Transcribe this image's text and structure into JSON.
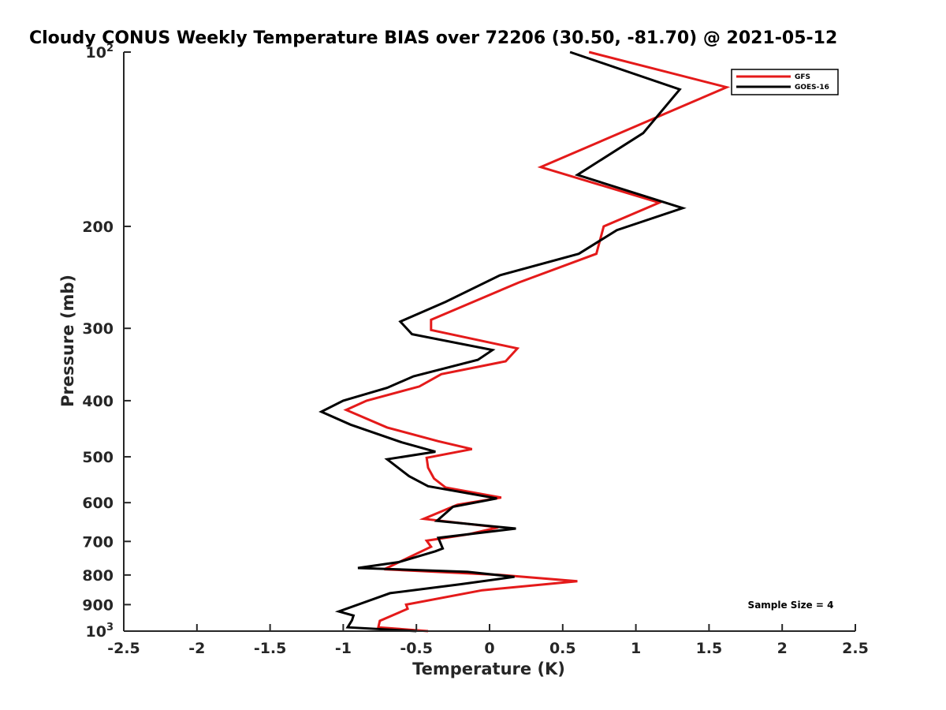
{
  "chart_data": {
    "type": "line",
    "title": "Cloudy CONUS Weekly Temperature BIAS over 72206 (30.50, -81.70) @ 2021-05-12",
    "xlabel": "Temperature (K)",
    "ylabel": "Pressure (mb)",
    "xlim": [
      -2.5,
      2.5
    ],
    "ylim": [
      100,
      1000
    ],
    "y_scale": "log",
    "y_reversed": true,
    "grid": false,
    "legend_position": "top-right",
    "x_ticks": [
      "-2.5",
      "-2",
      "-1.5",
      "-1",
      "-0.5",
      "0",
      "0.5",
      "1",
      "1.5",
      "2",
      "2.5"
    ],
    "x_tick_values": [
      -2.5,
      -2,
      -1.5,
      -1,
      -0.5,
      0,
      0.5,
      1,
      1.5,
      2,
      2.5
    ],
    "y_ticks": [
      {
        "value": 100,
        "base": "10",
        "exp": "2"
      },
      {
        "value": 200,
        "label": "200"
      },
      {
        "value": 300,
        "label": "300"
      },
      {
        "value": 400,
        "label": "400"
      },
      {
        "value": 500,
        "label": "500"
      },
      {
        "value": 600,
        "label": "600"
      },
      {
        "value": 700,
        "label": "700"
      },
      {
        "value": 800,
        "label": "800"
      },
      {
        "value": 900,
        "label": "900"
      },
      {
        "value": 1000,
        "base": "10",
        "exp": "3"
      }
    ],
    "annotation": "Sample Size = 4",
    "series": [
      {
        "name": "GFS",
        "color": "#e41a1a",
        "points": [
          {
            "x": 0.68,
            "y": 100
          },
          {
            "x": 1.62,
            "y": 115
          },
          {
            "x": 0.35,
            "y": 158
          },
          {
            "x": 1.16,
            "y": 182
          },
          {
            "x": 0.78,
            "y": 200
          },
          {
            "x": 0.73,
            "y": 223
          },
          {
            "x": 0.2,
            "y": 250
          },
          {
            "x": -0.4,
            "y": 290
          },
          {
            "x": -0.4,
            "y": 302
          },
          {
            "x": 0.19,
            "y": 325
          },
          {
            "x": 0.11,
            "y": 342
          },
          {
            "x": -0.33,
            "y": 360
          },
          {
            "x": -0.48,
            "y": 378
          },
          {
            "x": -0.84,
            "y": 400
          },
          {
            "x": -0.98,
            "y": 415
          },
          {
            "x": -0.7,
            "y": 445
          },
          {
            "x": -0.35,
            "y": 470
          },
          {
            "x": -0.12,
            "y": 485
          },
          {
            "x": -0.43,
            "y": 502
          },
          {
            "x": -0.42,
            "y": 522
          },
          {
            "x": -0.38,
            "y": 545
          },
          {
            "x": -0.3,
            "y": 565
          },
          {
            "x": 0.08,
            "y": 588
          },
          {
            "x": -0.22,
            "y": 605
          },
          {
            "x": -0.45,
            "y": 640
          },
          {
            "x": 0.06,
            "y": 662
          },
          {
            "x": -0.14,
            "y": 680
          },
          {
            "x": -0.43,
            "y": 698
          },
          {
            "x": -0.4,
            "y": 715
          },
          {
            "x": -0.72,
            "y": 782
          },
          {
            "x": 0.08,
            "y": 800
          },
          {
            "x": 0.6,
            "y": 820
          },
          {
            "x": -0.05,
            "y": 850
          },
          {
            "x": -0.57,
            "y": 900
          },
          {
            "x": -0.56,
            "y": 915
          },
          {
            "x": -0.75,
            "y": 960
          },
          {
            "x": -0.76,
            "y": 985
          },
          {
            "x": -0.42,
            "y": 1000
          }
        ]
      },
      {
        "name": "GOES-16",
        "color": "#000000",
        "points": [
          {
            "x": 0.55,
            "y": 100
          },
          {
            "x": 1.3,
            "y": 116
          },
          {
            "x": 1.05,
            "y": 138
          },
          {
            "x": 0.6,
            "y": 163
          },
          {
            "x": 1.32,
            "y": 186
          },
          {
            "x": 0.87,
            "y": 203
          },
          {
            "x": 0.61,
            "y": 223
          },
          {
            "x": 0.07,
            "y": 243
          },
          {
            "x": -0.3,
            "y": 270
          },
          {
            "x": -0.61,
            "y": 292
          },
          {
            "x": -0.53,
            "y": 307
          },
          {
            "x": 0.02,
            "y": 327
          },
          {
            "x": -0.08,
            "y": 340
          },
          {
            "x": -0.52,
            "y": 363
          },
          {
            "x": -0.7,
            "y": 380
          },
          {
            "x": -1.0,
            "y": 400
          },
          {
            "x": -1.15,
            "y": 418
          },
          {
            "x": -0.95,
            "y": 440
          },
          {
            "x": -0.6,
            "y": 472
          },
          {
            "x": -0.37,
            "y": 490
          },
          {
            "x": -0.7,
            "y": 505
          },
          {
            "x": -0.55,
            "y": 540
          },
          {
            "x": -0.42,
            "y": 562
          },
          {
            "x": 0.05,
            "y": 590
          },
          {
            "x": -0.25,
            "y": 610
          },
          {
            "x": -0.36,
            "y": 645
          },
          {
            "x": 0.18,
            "y": 665
          },
          {
            "x": -0.35,
            "y": 690
          },
          {
            "x": -0.32,
            "y": 720
          },
          {
            "x": -0.37,
            "y": 728
          },
          {
            "x": -0.62,
            "y": 760
          },
          {
            "x": -0.9,
            "y": 778
          },
          {
            "x": -0.15,
            "y": 790
          },
          {
            "x": 0.17,
            "y": 806
          },
          {
            "x": -0.2,
            "y": 830
          },
          {
            "x": -0.68,
            "y": 860
          },
          {
            "x": -1.03,
            "y": 925
          },
          {
            "x": -0.93,
            "y": 940
          },
          {
            "x": -0.94,
            "y": 958
          },
          {
            "x": -0.97,
            "y": 985
          },
          {
            "x": -0.5,
            "y": 1000
          }
        ]
      }
    ]
  }
}
